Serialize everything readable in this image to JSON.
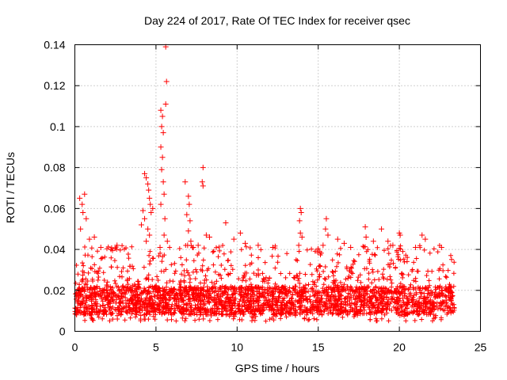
{
  "chart_data": {
    "type": "scatter",
    "title": "Day 224 of 2017, Rate Of TEC Index for receiver qsec",
    "xlabel": "GPS time / hours",
    "ylabel": "ROTI / TECUs",
    "xlim": [
      0,
      25
    ],
    "ylim": [
      0,
      0.14
    ],
    "grid": true,
    "marker": "+",
    "colors": {
      "series": "#ff0000",
      "axis": "#000000",
      "grid": "#a0a0a0"
    },
    "xticks": [
      {
        "value": 0,
        "label": "0"
      },
      {
        "value": 5,
        "label": "5"
      },
      {
        "value": 10,
        "label": "10"
      },
      {
        "value": 15,
        "label": "15"
      },
      {
        "value": 20,
        "label": "20"
      },
      {
        "value": 25,
        "label": "25"
      }
    ],
    "yticks": [
      {
        "value": 0,
        "label": "0"
      },
      {
        "value": 0.02,
        "label": "0.02"
      },
      {
        "value": 0.04,
        "label": "0.04"
      },
      {
        "value": 0.06,
        "label": "0.06"
      },
      {
        "value": 0.08,
        "label": "0.08"
      },
      {
        "value": 0.1,
        "label": "0.1"
      },
      {
        "value": 0.12,
        "label": "0.12"
      },
      {
        "value": 0.14,
        "label": "0.14"
      }
    ],
    "series": [
      {
        "name": "ROTI",
        "x_range": [
          0,
          23.4
        ],
        "band": {
          "low": 0.005,
          "high": 0.03,
          "dense_low": 0.008,
          "dense_high": 0.022
        },
        "outliers": [
          {
            "x": 0.3,
            "y": 0.065
          },
          {
            "x": 0.45,
            "y": 0.062
          },
          {
            "x": 0.6,
            "y": 0.067
          },
          {
            "x": 0.5,
            "y": 0.058
          },
          {
            "x": 0.35,
            "y": 0.05
          },
          {
            "x": 0.7,
            "y": 0.055
          },
          {
            "x": 0.9,
            "y": 0.045
          },
          {
            "x": 1.2,
            "y": 0.046
          },
          {
            "x": 1.6,
            "y": 0.041
          },
          {
            "x": 2.6,
            "y": 0.042
          },
          {
            "x": 4.3,
            "y": 0.077
          },
          {
            "x": 4.4,
            "y": 0.075
          },
          {
            "x": 4.5,
            "y": 0.072
          },
          {
            "x": 4.55,
            "y": 0.069
          },
          {
            "x": 4.6,
            "y": 0.065
          },
          {
            "x": 4.65,
            "y": 0.062
          },
          {
            "x": 4.7,
            "y": 0.058
          },
          {
            "x": 4.2,
            "y": 0.059
          },
          {
            "x": 4.3,
            "y": 0.055
          },
          {
            "x": 4.5,
            "y": 0.05
          },
          {
            "x": 4.6,
            "y": 0.047
          },
          {
            "x": 4.4,
            "y": 0.044
          },
          {
            "x": 4.1,
            "y": 0.052
          },
          {
            "x": 4.8,
            "y": 0.06
          },
          {
            "x": 5.3,
            "y": 0.108
          },
          {
            "x": 5.4,
            "y": 0.105
          },
          {
            "x": 5.35,
            "y": 0.1
          },
          {
            "x": 5.45,
            "y": 0.097
          },
          {
            "x": 5.3,
            "y": 0.09
          },
          {
            "x": 5.4,
            "y": 0.085
          },
          {
            "x": 5.35,
            "y": 0.079
          },
          {
            "x": 5.45,
            "y": 0.073
          },
          {
            "x": 5.5,
            "y": 0.067
          },
          {
            "x": 5.3,
            "y": 0.062
          },
          {
            "x": 5.6,
            "y": 0.111
          },
          {
            "x": 5.65,
            "y": 0.122
          },
          {
            "x": 5.6,
            "y": 0.139
          },
          {
            "x": 5.55,
            "y": 0.055
          },
          {
            "x": 5.5,
            "y": 0.047
          },
          {
            "x": 5.25,
            "y": 0.041
          },
          {
            "x": 5.7,
            "y": 0.044
          },
          {
            "x": 6.8,
            "y": 0.073
          },
          {
            "x": 7.0,
            "y": 0.066
          },
          {
            "x": 7.05,
            "y": 0.062
          },
          {
            "x": 6.9,
            "y": 0.057
          },
          {
            "x": 7.1,
            "y": 0.054
          },
          {
            "x": 7.0,
            "y": 0.049
          },
          {
            "x": 7.15,
            "y": 0.044
          },
          {
            "x": 6.95,
            "y": 0.042
          },
          {
            "x": 7.3,
            "y": 0.041
          },
          {
            "x": 7.6,
            "y": 0.042
          },
          {
            "x": 7.9,
            "y": 0.08
          },
          {
            "x": 7.85,
            "y": 0.073
          },
          {
            "x": 7.9,
            "y": 0.071
          },
          {
            "x": 8.1,
            "y": 0.047
          },
          {
            "x": 8.3,
            "y": 0.046
          },
          {
            "x": 9.3,
            "y": 0.053
          },
          {
            "x": 9.8,
            "y": 0.045
          },
          {
            "x": 10.2,
            "y": 0.048
          },
          {
            "x": 10.5,
            "y": 0.043
          },
          {
            "x": 11.3,
            "y": 0.042
          },
          {
            "x": 12.2,
            "y": 0.041
          },
          {
            "x": 13.9,
            "y": 0.06
          },
          {
            "x": 13.95,
            "y": 0.058
          },
          {
            "x": 13.85,
            "y": 0.054
          },
          {
            "x": 13.9,
            "y": 0.048
          },
          {
            "x": 14.0,
            "y": 0.046
          },
          {
            "x": 13.8,
            "y": 0.042
          },
          {
            "x": 15.5,
            "y": 0.055
          },
          {
            "x": 15.45,
            "y": 0.05
          },
          {
            "x": 15.6,
            "y": 0.047
          },
          {
            "x": 15.3,
            "y": 0.042
          },
          {
            "x": 16.2,
            "y": 0.045
          },
          {
            "x": 16.6,
            "y": 0.043
          },
          {
            "x": 17.0,
            "y": 0.041
          },
          {
            "x": 17.9,
            "y": 0.051
          },
          {
            "x": 17.95,
            "y": 0.046
          },
          {
            "x": 18.4,
            "y": 0.044
          },
          {
            "x": 18.9,
            "y": 0.05
          },
          {
            "x": 19.3,
            "y": 0.044
          },
          {
            "x": 20.0,
            "y": 0.048
          },
          {
            "x": 20.05,
            "y": 0.047
          },
          {
            "x": 19.6,
            "y": 0.042
          },
          {
            "x": 21.4,
            "y": 0.047
          },
          {
            "x": 21.6,
            "y": 0.045
          },
          {
            "x": 21.0,
            "y": 0.041
          },
          {
            "x": 22.6,
            "y": 0.041
          }
        ]
      }
    ]
  }
}
